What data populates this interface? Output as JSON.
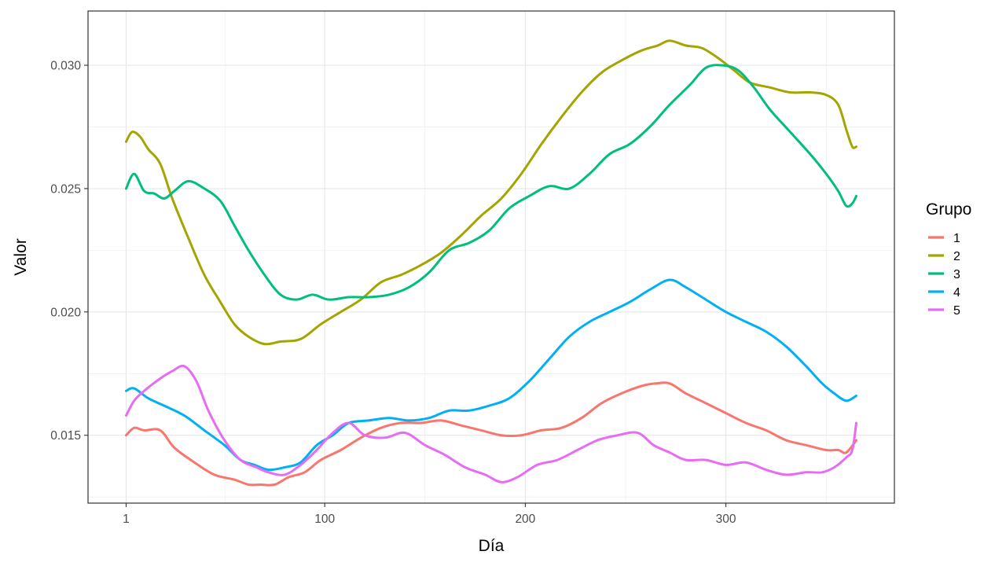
{
  "chart_data": {
    "type": "line",
    "xlabel": "Día",
    "ylabel": "Valor",
    "xlim": [
      -18,
      384
    ],
    "ylim": [
      0.01225,
      0.0322
    ],
    "x_ticks": [
      {
        "value": 1,
        "label": "1"
      },
      {
        "value": 100,
        "label": "100"
      },
      {
        "value": 200,
        "label": "200"
      },
      {
        "value": 300,
        "label": "300"
      }
    ],
    "y_ticks": [
      {
        "value": 0.015,
        "label": "0.015"
      },
      {
        "value": 0.02,
        "label": "0.020"
      },
      {
        "value": 0.025,
        "label": "0.025"
      },
      {
        "value": 0.03,
        "label": "0.030"
      }
    ],
    "grid": true,
    "legend": {
      "title": "Grupo",
      "position": "right"
    },
    "series": [
      {
        "name": "1",
        "color": "#F8766D",
        "points": [
          [
            1,
            0.015
          ],
          [
            5,
            0.0153
          ],
          [
            10,
            0.0152
          ],
          [
            18,
            0.0152
          ],
          [
            25,
            0.0145
          ],
          [
            35,
            0.0139
          ],
          [
            45,
            0.0134
          ],
          [
            55,
            0.0132
          ],
          [
            62,
            0.013
          ],
          [
            68,
            0.013
          ],
          [
            75,
            0.013
          ],
          [
            82,
            0.0133
          ],
          [
            90,
            0.0135
          ],
          [
            98,
            0.014
          ],
          [
            108,
            0.0144
          ],
          [
            118,
            0.0149
          ],
          [
            128,
            0.0153
          ],
          [
            138,
            0.0155
          ],
          [
            148,
            0.0155
          ],
          [
            158,
            0.0156
          ],
          [
            168,
            0.0154
          ],
          [
            178,
            0.0152
          ],
          [
            188,
            0.015
          ],
          [
            198,
            0.015
          ],
          [
            208,
            0.0152
          ],
          [
            218,
            0.0153
          ],
          [
            228,
            0.0157
          ],
          [
            238,
            0.0163
          ],
          [
            248,
            0.0167
          ],
          [
            258,
            0.017
          ],
          [
            265,
            0.0171
          ],
          [
            272,
            0.0171
          ],
          [
            280,
            0.0167
          ],
          [
            290,
            0.0163
          ],
          [
            300,
            0.0159
          ],
          [
            310,
            0.0155
          ],
          [
            320,
            0.0152
          ],
          [
            330,
            0.0148
          ],
          [
            340,
            0.0146
          ],
          [
            350,
            0.0144
          ],
          [
            356,
            0.0144
          ],
          [
            360,
            0.0143
          ],
          [
            365,
            0.0148
          ]
        ]
      },
      {
        "name": "2",
        "color": "#A3A500",
        "points": [
          [
            1,
            0.0269
          ],
          [
            4,
            0.0273
          ],
          [
            8,
            0.0271
          ],
          [
            12,
            0.0266
          ],
          [
            18,
            0.026
          ],
          [
            24,
            0.0246
          ],
          [
            32,
            0.023
          ],
          [
            40,
            0.0215
          ],
          [
            48,
            0.0204
          ],
          [
            55,
            0.0195
          ],
          [
            62,
            0.019
          ],
          [
            70,
            0.0187
          ],
          [
            78,
            0.0188
          ],
          [
            88,
            0.0189
          ],
          [
            98,
            0.0195
          ],
          [
            108,
            0.02
          ],
          [
            118,
            0.0205
          ],
          [
            128,
            0.0212
          ],
          [
            138,
            0.0215
          ],
          [
            148,
            0.0219
          ],
          [
            158,
            0.0224
          ],
          [
            168,
            0.0231
          ],
          [
            178,
            0.0239
          ],
          [
            188,
            0.0246
          ],
          [
            198,
            0.0256
          ],
          [
            208,
            0.0268
          ],
          [
            218,
            0.0279
          ],
          [
            228,
            0.0289
          ],
          [
            238,
            0.0297
          ],
          [
            248,
            0.0302
          ],
          [
            258,
            0.0306
          ],
          [
            266,
            0.0308
          ],
          [
            272,
            0.031
          ],
          [
            280,
            0.0308
          ],
          [
            288,
            0.0307
          ],
          [
            296,
            0.0303
          ],
          [
            304,
            0.0298
          ],
          [
            312,
            0.0293
          ],
          [
            322,
            0.0291
          ],
          [
            332,
            0.0289
          ],
          [
            342,
            0.0289
          ],
          [
            350,
            0.0288
          ],
          [
            356,
            0.0284
          ],
          [
            360,
            0.0274
          ],
          [
            363,
            0.0267
          ],
          [
            365,
            0.0267
          ]
        ]
      },
      {
        "name": "3",
        "color": "#00BF7D",
        "points": [
          [
            1,
            0.025
          ],
          [
            5,
            0.0256
          ],
          [
            10,
            0.0249
          ],
          [
            15,
            0.0248
          ],
          [
            20,
            0.0246
          ],
          [
            25,
            0.0249
          ],
          [
            32,
            0.0253
          ],
          [
            40,
            0.025
          ],
          [
            48,
            0.0245
          ],
          [
            55,
            0.0235
          ],
          [
            62,
            0.0225
          ],
          [
            70,
            0.0215
          ],
          [
            78,
            0.0207
          ],
          [
            86,
            0.0205
          ],
          [
            94,
            0.0207
          ],
          [
            102,
            0.0205
          ],
          [
            112,
            0.0206
          ],
          [
            122,
            0.0206
          ],
          [
            132,
            0.0207
          ],
          [
            142,
            0.021
          ],
          [
            152,
            0.0216
          ],
          [
            162,
            0.0225
          ],
          [
            172,
            0.0228
          ],
          [
            182,
            0.0233
          ],
          [
            192,
            0.0242
          ],
          [
            202,
            0.0247
          ],
          [
            212,
            0.0251
          ],
          [
            222,
            0.025
          ],
          [
            232,
            0.0256
          ],
          [
            242,
            0.0264
          ],
          [
            252,
            0.0268
          ],
          [
            262,
            0.0275
          ],
          [
            272,
            0.0284
          ],
          [
            282,
            0.0292
          ],
          [
            290,
            0.0299
          ],
          [
            298,
            0.03
          ],
          [
            306,
            0.0298
          ],
          [
            314,
            0.0291
          ],
          [
            322,
            0.0282
          ],
          [
            332,
            0.0273
          ],
          [
            342,
            0.0264
          ],
          [
            350,
            0.0256
          ],
          [
            356,
            0.0249
          ],
          [
            360,
            0.0243
          ],
          [
            363,
            0.0244
          ],
          [
            365,
            0.0247
          ]
        ]
      },
      {
        "name": "4",
        "color": "#00B0F6",
        "points": [
          [
            1,
            0.0168
          ],
          [
            5,
            0.0169
          ],
          [
            12,
            0.0165
          ],
          [
            20,
            0.0162
          ],
          [
            30,
            0.0158
          ],
          [
            40,
            0.0152
          ],
          [
            50,
            0.0146
          ],
          [
            58,
            0.014
          ],
          [
            65,
            0.0138
          ],
          [
            72,
            0.0136
          ],
          [
            80,
            0.0137
          ],
          [
            88,
            0.0139
          ],
          [
            96,
            0.0146
          ],
          [
            104,
            0.015
          ],
          [
            112,
            0.0155
          ],
          [
            122,
            0.0156
          ],
          [
            132,
            0.0157
          ],
          [
            142,
            0.0156
          ],
          [
            152,
            0.0157
          ],
          [
            162,
            0.016
          ],
          [
            172,
            0.016
          ],
          [
            182,
            0.0162
          ],
          [
            192,
            0.0165
          ],
          [
            202,
            0.0172
          ],
          [
            212,
            0.0181
          ],
          [
            222,
            0.019
          ],
          [
            232,
            0.0196
          ],
          [
            242,
            0.02
          ],
          [
            252,
            0.0204
          ],
          [
            262,
            0.0209
          ],
          [
            272,
            0.0213
          ],
          [
            280,
            0.021
          ],
          [
            290,
            0.0205
          ],
          [
            300,
            0.02
          ],
          [
            310,
            0.0196
          ],
          [
            320,
            0.0192
          ],
          [
            330,
            0.0186
          ],
          [
            340,
            0.0178
          ],
          [
            348,
            0.0171
          ],
          [
            354,
            0.0167
          ],
          [
            360,
            0.0164
          ],
          [
            365,
            0.0166
          ]
        ]
      },
      {
        "name": "5",
        "color": "#E76BF3",
        "points": [
          [
            1,
            0.0158
          ],
          [
            5,
            0.0164
          ],
          [
            10,
            0.0168
          ],
          [
            18,
            0.0173
          ],
          [
            24,
            0.0176
          ],
          [
            30,
            0.0178
          ],
          [
            36,
            0.0172
          ],
          [
            42,
            0.016
          ],
          [
            50,
            0.0148
          ],
          [
            58,
            0.014
          ],
          [
            66,
            0.0137
          ],
          [
            72,
            0.0135
          ],
          [
            80,
            0.0134
          ],
          [
            88,
            0.0138
          ],
          [
            96,
            0.0144
          ],
          [
            104,
            0.0151
          ],
          [
            112,
            0.0155
          ],
          [
            120,
            0.015
          ],
          [
            130,
            0.0149
          ],
          [
            140,
            0.0151
          ],
          [
            150,
            0.0146
          ],
          [
            160,
            0.0142
          ],
          [
            170,
            0.0137
          ],
          [
            180,
            0.0134
          ],
          [
            188,
            0.0131
          ],
          [
            196,
            0.0133
          ],
          [
            206,
            0.0138
          ],
          [
            216,
            0.014
          ],
          [
            226,
            0.0144
          ],
          [
            236,
            0.0148
          ],
          [
            246,
            0.015
          ],
          [
            256,
            0.0151
          ],
          [
            264,
            0.0146
          ],
          [
            272,
            0.0143
          ],
          [
            280,
            0.014
          ],
          [
            290,
            0.014
          ],
          [
            300,
            0.0138
          ],
          [
            310,
            0.0139
          ],
          [
            320,
            0.0136
          ],
          [
            330,
            0.0134
          ],
          [
            340,
            0.0135
          ],
          [
            348,
            0.0135
          ],
          [
            354,
            0.0137
          ],
          [
            360,
            0.0141
          ],
          [
            363,
            0.0144
          ],
          [
            365,
            0.0155
          ]
        ]
      }
    ]
  }
}
